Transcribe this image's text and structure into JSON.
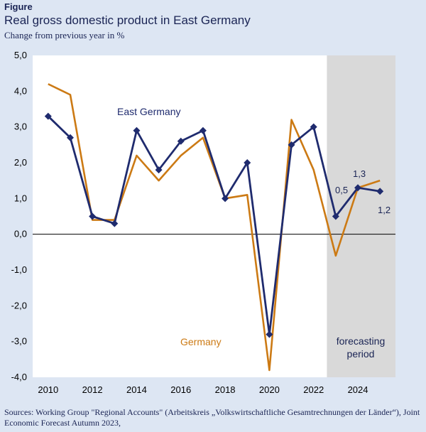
{
  "figure_label": "Figure",
  "chart_data": {
    "type": "line",
    "title": "Real gross domestic product in East Germany",
    "subtitle": "Change from previous year in %",
    "x": [
      2010,
      2011,
      2012,
      2013,
      2014,
      2015,
      2016,
      2017,
      2018,
      2019,
      2020,
      2021,
      2022,
      2023,
      2024,
      2025
    ],
    "xticks": [
      2010,
      2012,
      2014,
      2016,
      2018,
      2020,
      2022,
      2024
    ],
    "xlim": [
      2009.3,
      2025.7
    ],
    "ylim": [
      -4.0,
      5.0
    ],
    "yticks": [
      "5,0",
      "4,0",
      "3,0",
      "2,0",
      "1,0",
      "0,0",
      "-1,0",
      "-2,0",
      "-3,0",
      "-4,0"
    ],
    "series": [
      {
        "name": "Germany",
        "color": "#cc7a14",
        "values": [
          4.2,
          3.9,
          0.4,
          0.4,
          2.2,
          1.5,
          2.2,
          2.7,
          1.0,
          1.1,
          -3.8,
          3.2,
          1.8,
          -0.6,
          1.3,
          1.5
        ]
      },
      {
        "name": "East Germany",
        "color": "#1f2b6e",
        "values": [
          3.3,
          2.7,
          0.5,
          0.3,
          2.9,
          1.8,
          2.6,
          2.9,
          1.0,
          2.0,
          -2.8,
          2.5,
          3.0,
          0.5,
          1.3,
          1.2
        ]
      }
    ],
    "forecast": {
      "start": 2022.6,
      "label_line1": "forecasting",
      "label_line2": "period"
    },
    "annotations": [
      "0,5",
      "1,3",
      "1,2"
    ],
    "grid": false,
    "legend": "inline"
  },
  "source": "Sources: Working Group \"Regional Accounts\" (Arbeitskreis „Volkswirtschaftliche Gesamtrechnungen der Länder“), Joint Economic Forecast Autumn 2023,"
}
